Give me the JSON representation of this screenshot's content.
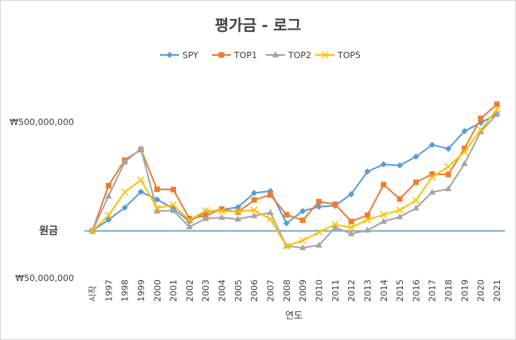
{
  "chart_data": {
    "type": "line",
    "title": "평가금 - 로그",
    "xlabel": "연도",
    "ylabel": "",
    "y_scale": "log",
    "ylim": [
      50000000,
      1000000000
    ],
    "y_ticks": [
      {
        "value": 50000000,
        "label": "₩50,000,000"
      },
      {
        "value": 100000000,
        "label": "원금"
      },
      {
        "value": 500000000,
        "label": "₩500,000,000"
      }
    ],
    "reference_line": {
      "label": "원금",
      "value": 100000000,
      "color": "#5b9bbd"
    },
    "categories": [
      "시작",
      "1997",
      "1998",
      "1999",
      "2000",
      "2001",
      "2002",
      "2003",
      "2004",
      "2005",
      "2006",
      "2007",
      "2008",
      "2009",
      "2010",
      "2011",
      "2012",
      "2013",
      "2014",
      "2015",
      "2016",
      "2017",
      "2018",
      "2019",
      "2020",
      "2021"
    ],
    "legend_position": "top",
    "grid": false,
    "series": [
      {
        "name": "SPY",
        "color": "#5b9bd5",
        "marker": "diamond",
        "values": [
          100000000,
          118000000,
          141000000,
          178000000,
          159000000,
          139000000,
          115000000,
          132000000,
          137000000,
          142000000,
          175000000,
          180000000,
          112000000,
          134000000,
          143000000,
          145000000,
          172000000,
          240000000,
          267000000,
          263000000,
          299000000,
          356000000,
          336000000,
          436000000,
          493000000,
          560000000
        ]
      },
      {
        "name": "TOP1",
        "color": "#ed7d31",
        "marker": "square",
        "values": [
          100000000,
          195000000,
          284000000,
          332000000,
          185000000,
          184000000,
          120000000,
          125000000,
          138000000,
          132000000,
          158000000,
          170000000,
          127000000,
          117000000,
          154000000,
          148000000,
          115000000,
          126000000,
          198000000,
          160000000,
          205000000,
          231000000,
          230000000,
          338000000,
          526000000,
          648000000
        ]
      },
      {
        "name": "TOP2",
        "color": "#a5a5a5",
        "marker": "triangle",
        "values": [
          100000000,
          167000000,
          276000000,
          337000000,
          134000000,
          135000000,
          106000000,
          120000000,
          122000000,
          119000000,
          125000000,
          131000000,
          80000000,
          78000000,
          81000000,
          105000000,
          96000000,
          101000000,
          115000000,
          123000000,
          140000000,
          177000000,
          186000000,
          270000000,
          432000000,
          560000000
        ]
      },
      {
        "name": "TOP5",
        "color": "#ffc000",
        "marker": "x",
        "values": [
          100000000,
          126000000,
          177000000,
          212000000,
          140000000,
          147000000,
          117000000,
          135000000,
          134000000,
          133000000,
          136000000,
          119000000,
          80000000,
          87000000,
          98000000,
          110000000,
          105000000,
          118000000,
          127000000,
          136000000,
          157000000,
          221000000,
          258000000,
          322000000,
          444000000,
          601000000
        ]
      }
    ]
  }
}
